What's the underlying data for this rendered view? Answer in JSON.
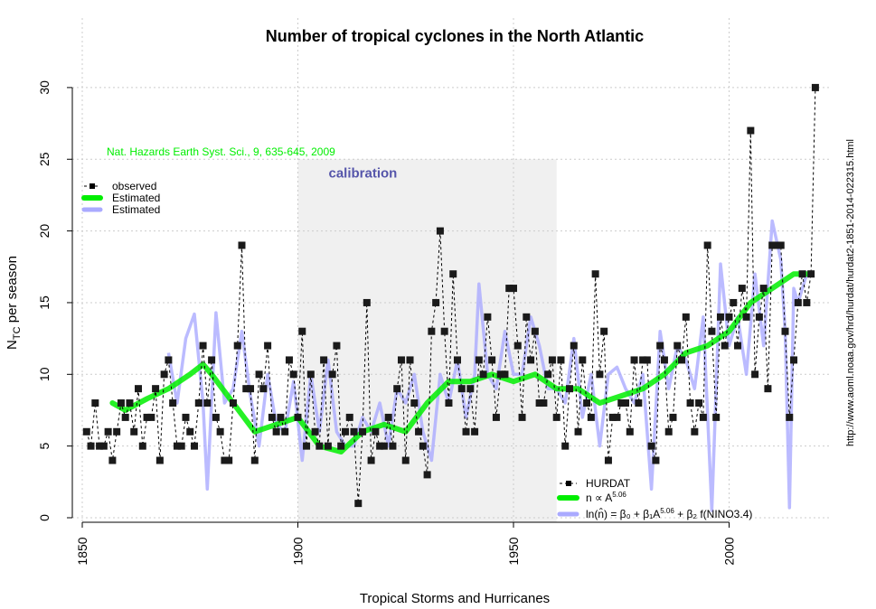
{
  "chart_data": {
    "type": "line",
    "title": "Number of tropical cyclones in the North Atlantic",
    "xlabel": "Tropical Storms and Hurricanes",
    "ylabel_main": "N",
    "ylabel_sub": "TC",
    "ylabel_rest": " per season",
    "xlim": [
      1848,
      2023
    ],
    "ylim": [
      0,
      30
    ],
    "xticks": [
      1850,
      1900,
      1950,
      2000
    ],
    "yticks": [
      0,
      5,
      10,
      15,
      20,
      25,
      30
    ],
    "grid": true,
    "citation": "Nat. Hazards Earth Syst. Sci., 9, 635-645, 2009",
    "source_url": "http://www.aoml.noaa.gov/hrd/hurdat/hurdat2-1851-2014-022315.html",
    "calibration": {
      "label": "calibration",
      "x_range": [
        1900,
        1960
      ],
      "y_range": [
        0,
        25
      ]
    },
    "colors": {
      "observed": "#000000",
      "green": "#00ee00",
      "blue": "#aaaaff",
      "calibration_bg": "#f0f0f0",
      "calibration_text": "#5555aa",
      "citation": "#00ee00"
    },
    "legend_topleft": [
      "observed",
      "Estimated",
      "Estimated"
    ],
    "legend_bottomright": {
      "hurdat": "HURDAT",
      "green": "n ∝ A",
      "green_exp": "5.06",
      "blue": "ln(n̂) = β₀ + β₁A",
      "blue_exp": "5.06",
      "blue_rest": " + β₂ f(NINO3.4)"
    },
    "observed": {
      "start_year": 1851,
      "values": [
        6,
        5,
        8,
        5,
        5,
        6,
        4,
        6,
        8,
        7,
        8,
        6,
        9,
        5,
        7,
        7,
        9,
        4,
        10,
        11,
        8,
        5,
        5,
        7,
        6,
        5,
        8,
        12,
        8,
        11,
        7,
        6,
        4,
        4,
        8,
        12,
        19,
        9,
        9,
        4,
        10,
        9,
        12,
        7,
        6,
        7,
        6,
        11,
        10,
        7,
        13,
        5,
        10,
        6,
        5,
        11,
        5,
        10,
        12,
        5,
        6,
        7,
        6,
        1,
        6,
        15,
        4,
        6,
        5,
        5,
        7,
        5,
        9,
        11,
        4,
        11,
        8,
        6,
        5,
        3,
        13,
        15,
        20,
        13,
        8,
        17,
        11,
        9,
        6,
        9,
        6,
        11,
        10,
        14,
        11,
        7,
        10,
        10,
        16,
        16,
        12,
        7,
        14,
        11,
        13,
        8,
        8,
        10,
        11,
        7,
        11,
        5,
        9,
        12,
        6,
        11,
        8,
        7,
        17,
        10,
        13,
        4,
        7,
        7,
        8,
        8,
        6,
        11,
        8,
        11,
        11,
        5,
        4,
        12,
        11,
        6,
        7,
        12,
        11,
        14,
        8,
        6,
        8,
        7,
        19,
        13,
        7,
        14,
        12,
        14,
        15,
        12,
        16,
        14,
        27,
        10,
        14,
        16,
        9,
        19,
        19,
        19,
        13,
        7,
        11,
        15,
        17,
        15,
        17,
        30
      ]
    },
    "estimated_green": {
      "x": [
        1857,
        1860,
        1865,
        1870,
        1875,
        1878,
        1880,
        1885,
        1890,
        1895,
        1900,
        1905,
        1910,
        1915,
        1920,
        1925,
        1930,
        1935,
        1940,
        1945,
        1950,
        1955,
        1960,
        1965,
        1970,
        1975,
        1980,
        1985,
        1990,
        1995,
        2000,
        2005,
        2010,
        2015,
        2019
      ],
      "y": [
        8,
        7.5,
        8.3,
        9,
        10,
        10.7,
        10,
        8,
        6,
        6.5,
        7,
        5,
        4.6,
        6,
        6.5,
        6,
        8,
        9.5,
        9.5,
        10,
        9.5,
        10,
        9,
        9,
        8,
        8.5,
        9,
        10,
        11.5,
        12,
        13,
        15,
        16,
        17,
        17
      ]
    },
    "estimated_blue": {
      "x": [
        1870,
        1872,
        1874,
        1876,
        1878,
        1879,
        1881,
        1883,
        1885,
        1887,
        1889,
        1891,
        1893,
        1895,
        1897,
        1899,
        1901,
        1903,
        1905,
        1907,
        1909,
        1911,
        1913,
        1915,
        1917,
        1919,
        1921,
        1923,
        1925,
        1927,
        1929,
        1931,
        1933,
        1935,
        1937,
        1939,
        1941,
        1942,
        1944,
        1946,
        1948,
        1950,
        1952,
        1954,
        1956,
        1958,
        1960,
        1962,
        1964,
        1966,
        1968,
        1970,
        1972,
        1974,
        1976,
        1978,
        1980,
        1982,
        1984,
        1986,
        1988,
        1990,
        1992,
        1994,
        1996,
        1998,
        2000,
        2002,
        2004,
        2006,
        2008,
        2010,
        2012,
        2013,
        2014,
        2015,
        2016,
        2018
      ],
      "y": [
        11.5,
        8,
        12.5,
        14.2,
        8,
        2,
        14.3,
        8,
        9,
        13,
        8.5,
        5,
        10,
        6.5,
        6,
        9.5,
        4,
        10,
        6,
        11,
        6,
        5,
        5,
        7,
        6,
        8,
        5,
        9,
        8,
        10,
        6,
        4,
        10,
        8,
        11,
        7,
        10,
        16.3,
        10,
        9,
        13,
        10,
        10,
        14,
        12,
        9,
        9,
        8,
        12.5,
        7,
        10,
        5,
        10,
        10.5,
        9,
        8,
        10,
        2,
        13,
        9,
        12,
        11,
        9,
        14,
        0.5,
        17.7,
        12,
        14,
        10,
        17,
        12,
        20.7,
        18,
        13,
        0.7,
        16,
        15,
        17
      ]
    }
  }
}
